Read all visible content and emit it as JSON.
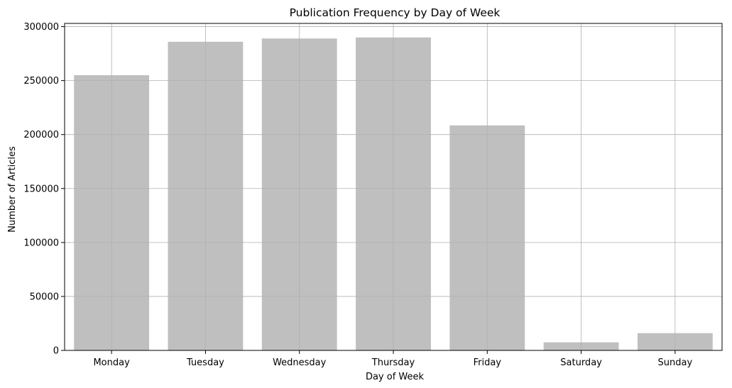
{
  "chart_data": {
    "type": "bar",
    "title": "Publication Frequency by Day of Week",
    "xlabel": "Day of Week",
    "ylabel": "Number of Articles",
    "categories": [
      "Monday",
      "Tuesday",
      "Wednesday",
      "Thursday",
      "Friday",
      "Saturday",
      "Sunday"
    ],
    "values": [
      255000,
      286000,
      289000,
      290000,
      208500,
      7500,
      16000
    ],
    "ylim": [
      0,
      303000
    ],
    "yticks": [
      0,
      50000,
      100000,
      150000,
      200000,
      250000,
      300000
    ],
    "ytick_labels": [
      "0",
      "50000",
      "100000",
      "150000",
      "200000",
      "250000",
      "300000"
    ],
    "grid": true,
    "bar_color": "#bfbfbf",
    "grid_color": "#b0b0b0"
  }
}
